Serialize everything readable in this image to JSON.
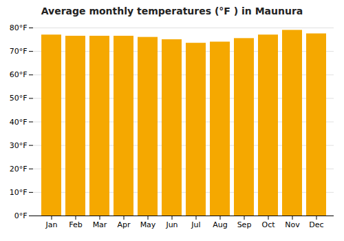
{
  "chart_data": {
    "type": "bar",
    "title": "Average monthly temperatures (°F ) in Maunura",
    "categories": [
      "Jan",
      "Feb",
      "Mar",
      "Apr",
      "May",
      "Jun",
      "Jul",
      "Aug",
      "Sep",
      "Oct",
      "Nov",
      "Dec"
    ],
    "values": [
      77.0,
      76.5,
      76.5,
      76.5,
      76.0,
      75.0,
      73.5,
      74.0,
      75.5,
      77.0,
      79.0,
      77.5
    ],
    "color": "#F5A800",
    "ylim": [
      0,
      80
    ],
    "yticks": [
      {
        "value": 0,
        "label": "0°F"
      },
      {
        "value": 10,
        "label": "10°F"
      },
      {
        "value": 20,
        "label": "20°F"
      },
      {
        "value": 30,
        "label": "30°F"
      },
      {
        "value": 40,
        "label": "40°F"
      },
      {
        "value": 50,
        "label": "50°F"
      },
      {
        "value": 60,
        "label": "60°F"
      },
      {
        "value": 70,
        "label": "70°F"
      },
      {
        "value": 80,
        "label": "80°F"
      }
    ],
    "grid": true
  }
}
